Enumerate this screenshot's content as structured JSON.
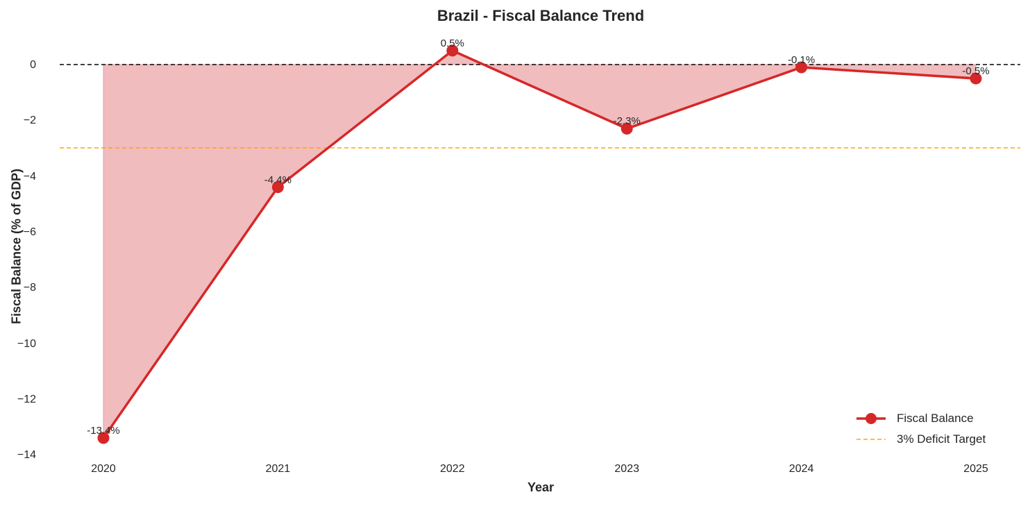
{
  "chart_data": {
    "type": "line",
    "title": "Brazil - Fiscal Balance Trend",
    "xlabel": "Year",
    "ylabel": "Fiscal Balance (% of GDP)",
    "categories": [
      "2020",
      "2021",
      "2022",
      "2023",
      "2024",
      "2025"
    ],
    "series": [
      {
        "name": "Fiscal Balance",
        "values": [
          -13.4,
          -4.4,
          0.5,
          -2.3,
          -0.1,
          -0.5
        ],
        "color": "#d62728",
        "fill": "#f0bcbe",
        "marker": "circle"
      }
    ],
    "data_labels": [
      "-13.4%",
      "-4.4%",
      "0.5%",
      "-2.3%",
      "-0.1%",
      "-0.5%"
    ],
    "reference_lines": [
      {
        "name": "zero",
        "y": 0,
        "color": "#000000",
        "style": "dashed"
      },
      {
        "name": "3% Deficit Target",
        "y": -3,
        "color": "#ffa500",
        "style": "dashed"
      }
    ],
    "yticks": [
      "0",
      "−2",
      "−4",
      "−6",
      "−8",
      "−10",
      "−12",
      "−14"
    ],
    "ylim": [
      -14,
      0.8
    ],
    "grid": false,
    "legend_position": "lower right",
    "legend": [
      "Fiscal Balance",
      "3% Deficit Target"
    ]
  }
}
